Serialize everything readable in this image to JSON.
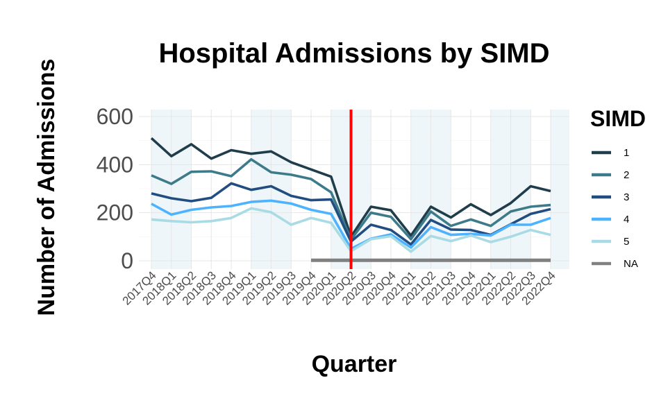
{
  "chart_data": {
    "type": "line",
    "title": "Hospital Admissions by SIMD",
    "xlabel": "Quarter",
    "ylabel": "Number of Admissions",
    "categories": [
      "2017Q4",
      "2018Q1",
      "2018Q2",
      "2018Q3",
      "2018Q4",
      "2019Q1",
      "2019Q2",
      "2019Q3",
      "2019Q4",
      "2020Q1",
      "2020Q2",
      "2020Q3",
      "2020Q4",
      "2021Q1",
      "2021Q2",
      "2021Q3",
      "2021Q4",
      "2022Q1",
      "2022Q2",
      "2022Q3",
      "2022Q4"
    ],
    "yticks": [
      "0",
      "200",
      "400",
      "600"
    ],
    "ylim": [
      0,
      600
    ],
    "grid": true,
    "legend": {
      "title": "SIMD",
      "position": "right"
    },
    "reference_line": {
      "x": "2020Q2",
      "color": "#ff0000"
    },
    "shaded_years": [
      {
        "from": "2017Q4",
        "to": "2018Q2"
      },
      {
        "from": "2019Q1",
        "to": "2019Q3"
      },
      {
        "from": "2020Q1",
        "to": "2020Q3"
      },
      {
        "from": "2021Q1",
        "to": "2021Q3"
      },
      {
        "from": "2022Q1",
        "to": "2022Q3"
      }
    ],
    "series": [
      {
        "name": "1",
        "color": "#1f3d4a",
        "values": [
          510,
          435,
          485,
          425,
          460,
          445,
          455,
          410,
          380,
          350,
          100,
          225,
          210,
          105,
          225,
          180,
          235,
          190,
          240,
          310,
          290
        ]
      },
      {
        "name": "2",
        "color": "#3d7a8a",
        "values": [
          355,
          320,
          370,
          372,
          352,
          422,
          368,
          358,
          340,
          285,
          88,
          200,
          183,
          90,
          205,
          145,
          172,
          145,
          205,
          225,
          232
        ]
      },
      {
        "name": "3",
        "color": "#214d80",
        "values": [
          280,
          260,
          248,
          262,
          322,
          295,
          310,
          270,
          252,
          255,
          80,
          150,
          128,
          68,
          170,
          130,
          128,
          108,
          152,
          195,
          215
        ]
      },
      {
        "name": "4",
        "color": "#4db3ff",
        "values": [
          237,
          192,
          212,
          222,
          228,
          245,
          250,
          238,
          212,
          195,
          50,
          92,
          110,
          55,
          140,
          108,
          112,
          105,
          150,
          150,
          178
        ]
      },
      {
        "name": "5",
        "color": "#a8dbe3",
        "values": [
          172,
          165,
          160,
          165,
          178,
          218,
          202,
          150,
          178,
          158,
          40,
          90,
          102,
          38,
          103,
          82,
          105,
          78,
          100,
          128,
          108
        ]
      },
      {
        "name": "NA",
        "color": "#808080",
        "x_start": "2019Q4",
        "values": [
          null,
          null,
          null,
          null,
          null,
          null,
          null,
          null,
          2,
          2,
          2,
          2,
          2,
          2,
          2,
          2,
          2,
          2,
          2,
          2,
          2
        ]
      }
    ]
  }
}
